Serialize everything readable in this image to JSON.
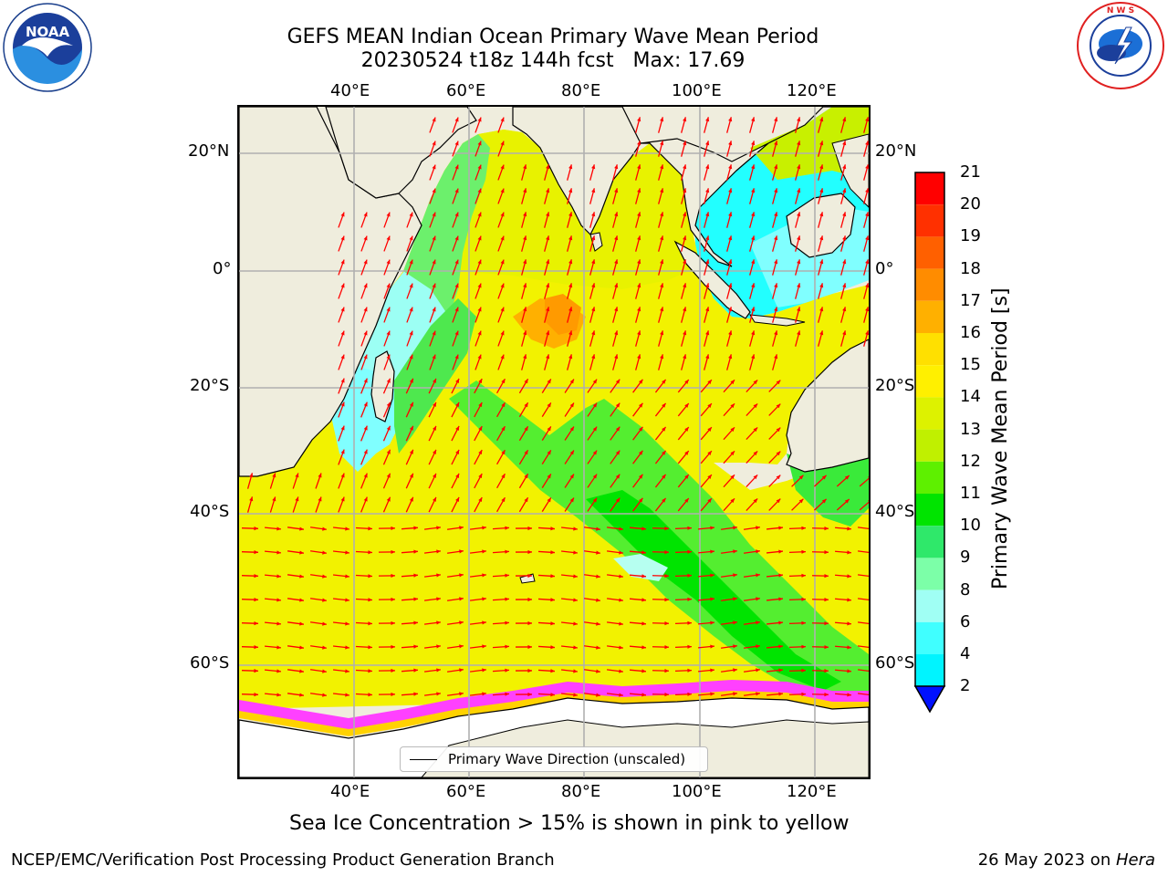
{
  "title": {
    "line1": "GEFS MEAN Indian Ocean Primary Wave Mean Period",
    "line2": "20230524 t18z 144h fcst   Max: 17.69"
  },
  "logos": {
    "left": {
      "icon": "noaa-logo",
      "text": "NOAA",
      "ring_text": "NATIONAL OCEANIC AND ATMOSPHERIC ADMINISTRATION · U.S. DEPARTMENT OF COMMERCE"
    },
    "right": {
      "icon": "nws-logo",
      "ring_text": "NATIONAL WEATHER SERVICE"
    }
  },
  "map": {
    "lon_ticks_top": [
      "40°E",
      "60°E",
      "80°E",
      "100°E",
      "120°E"
    ],
    "lon_ticks_bottom": [
      "40°E",
      "60°E",
      "80°E",
      "100°E",
      "120°E"
    ],
    "lat_ticks_left": [
      "20°N",
      "0°",
      "20°S",
      "40°S",
      "60°S"
    ],
    "lat_ticks_right": [
      "20°N",
      "0°",
      "20°S",
      "40°S",
      "60°S"
    ],
    "legend_label": "Primary Wave Direction (unscaled)",
    "land_color": "#efeddd",
    "arrow_color": "#ff0000"
  },
  "colorbar": {
    "label": "Primary Wave Mean Period [s]",
    "ticks": [
      "21",
      "20",
      "19",
      "18",
      "17",
      "16",
      "15",
      "14",
      "13",
      "12",
      "11",
      "10",
      "9",
      "8",
      "6",
      "4",
      "2"
    ],
    "colors": [
      "#ff0000",
      "#ff3000",
      "#ff6000",
      "#ff8c00",
      "#ffb000",
      "#ffe000",
      "#fff000",
      "#ddf200",
      "#c0f000",
      "#5ef000",
      "#00e400",
      "#2fe86a",
      "#7cffa8",
      "#a0fff4",
      "#40ffff",
      "#00f4ff",
      "#0090ff"
    ],
    "extend_color": "#0010ff"
  },
  "caption": "Sea Ice Concentration > 15% is shown in pink to yellow",
  "footer": {
    "left": "NCEP/EMC/Verification Post Processing Product Generation Branch",
    "right_date": "26 May 2023 on ",
    "right_host": "Hera"
  }
}
